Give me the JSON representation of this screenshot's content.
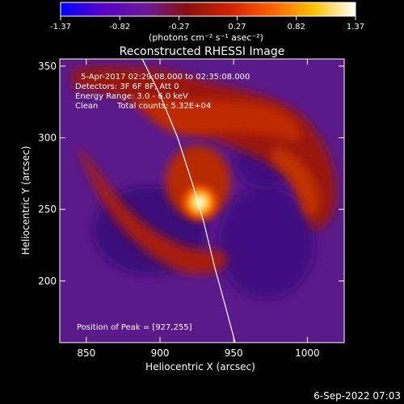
{
  "colorbar": {
    "tick_labels": [
      "-1.37",
      "-0.82",
      "-0.27",
      "0.27",
      "0.82",
      "1.37"
    ],
    "tick_values": [
      -1.37,
      -0.82,
      -0.27,
      0.27,
      0.82,
      1.37
    ],
    "min": -1.37,
    "max": 1.37,
    "units_label": "(photons cm⁻² s⁻¹ asec⁻²)",
    "colors": [
      "#0000ff",
      "#5a00c8",
      "#6a1a9a",
      "#8a1010",
      "#d02000",
      "#ff6000",
      "#ffc000",
      "#ffffff"
    ]
  },
  "chart_data": {
    "type": "heatmap",
    "title": "Reconstructed RHESSI Image",
    "xlabel": "Heliocentric X (arcsec)",
    "ylabel": "Heliocentric Y (arcsec)",
    "xlim": [
      832,
      1025
    ],
    "ylim": [
      157,
      355
    ],
    "x_ticks": [
      850,
      900,
      950,
      1000
    ],
    "y_ticks": [
      200,
      250,
      300,
      350
    ],
    "x_tick_labels": [
      "850",
      "900",
      "950",
      "1000"
    ],
    "y_tick_labels": [
      "200",
      "250",
      "300",
      "350"
    ],
    "peak": [
      927,
      255
    ],
    "limb_curve": [
      [
        888,
        355
      ],
      [
        900,
        330
      ],
      [
        912,
        300
      ],
      [
        922,
        268
      ],
      [
        930,
        240
      ],
      [
        937,
        210
      ],
      [
        945,
        180
      ],
      [
        951,
        157
      ]
    ],
    "annotations": {
      "time_range": "5-Apr-2017 02:29:08.000 to 02:35:08.000",
      "detectors": "Detectors: 3F 6F 8F, Att 0",
      "energy": "Energy Range: 3.0 - 6.0 keV",
      "clean": "Clean",
      "total_counts": "Total counts: 5.32E+04",
      "peak_position": "Position of Peak = [927,255]"
    }
  },
  "timestamp": "6-Sep-2022 07:03"
}
